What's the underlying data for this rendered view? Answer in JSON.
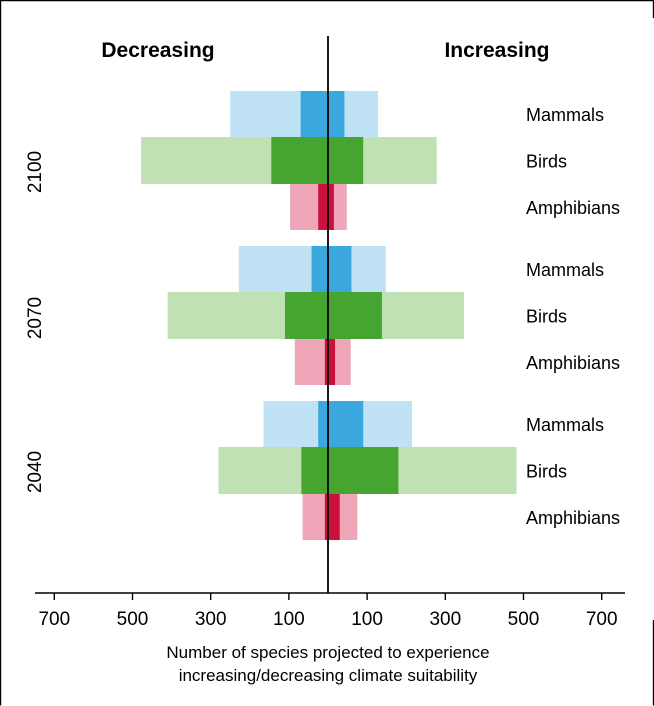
{
  "chart_data": {
    "type": "bar",
    "header_left": "Decreasing",
    "header_right": "Increasing",
    "xlabel_lines": [
      "Number of species projected to experience",
      "increasing/decreasing climate suitability"
    ],
    "xlim": [
      -750,
      750
    ],
    "x_ticks": [
      -700,
      -500,
      -300,
      -100,
      100,
      300,
      500,
      700
    ],
    "x_tick_labels": [
      "700",
      "500",
      "300",
      "100",
      "100",
      "300",
      "500",
      "700"
    ],
    "years": [
      "2100",
      "2070",
      "2040"
    ],
    "taxa": [
      "Mammals",
      "Birds",
      "Amphibians"
    ],
    "taxon_colors": {
      "Mammals": {
        "light": "#bfe2f4",
        "dark": "#3aa8dd"
      },
      "Birds": {
        "light": "#bfe1b3",
        "dark": "#45a530"
      },
      "Amphibians": {
        "light": "#eea6b8",
        "dark": "#cc0f3d"
      }
    },
    "groups": [
      {
        "year": "2100",
        "bars": [
          {
            "taxon": "Mammals",
            "outer": [
              -250,
              128
            ],
            "inner": [
              -70,
              42
            ]
          },
          {
            "taxon": "Birds",
            "outer": [
              -478,
              278
            ],
            "inner": [
              -145,
              90
            ]
          },
          {
            "taxon": "Amphibians",
            "outer": [
              -97,
              48
            ],
            "inner": [
              -25,
              15
            ]
          }
        ]
      },
      {
        "year": "2070",
        "bars": [
          {
            "taxon": "Mammals",
            "outer": [
              -228,
              148
            ],
            "inner": [
              -42,
              60
            ]
          },
          {
            "taxon": "Birds",
            "outer": [
              -410,
              348
            ],
            "inner": [
              -110,
              138
            ]
          },
          {
            "taxon": "Amphibians",
            "outer": [
              -85,
              58
            ],
            "inner": [
              -8,
              18
            ]
          }
        ]
      },
      {
        "year": "2040",
        "bars": [
          {
            "taxon": "Mammals",
            "outer": [
              -165,
              215
            ],
            "inner": [
              -25,
              90
            ]
          },
          {
            "taxon": "Birds",
            "outer": [
              -280,
              482
            ],
            "inner": [
              -68,
              180
            ]
          },
          {
            "taxon": "Amphibians",
            "outer": [
              -65,
              75
            ],
            "inner": [
              -8,
              30
            ]
          }
        ]
      }
    ]
  }
}
